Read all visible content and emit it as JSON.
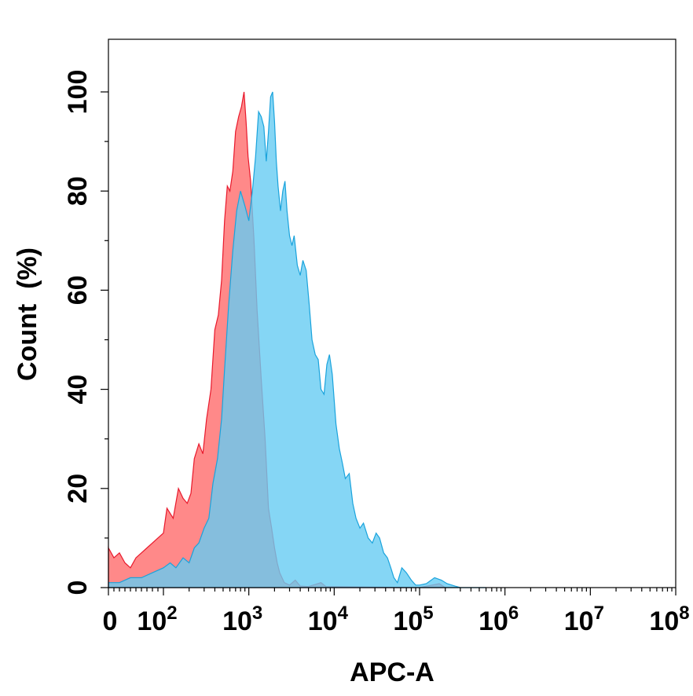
{
  "chart_data": {
    "type": "area",
    "title": "",
    "xlabel": "APC-A",
    "ylabel": "Count  (%)",
    "x_scale": "log",
    "xlim": [
      0,
      100000000
    ],
    "ylim": [
      0,
      100
    ],
    "grid": false,
    "legend": "none",
    "x_ticks": [
      {
        "base": "0",
        "exp": "",
        "value": 0
      },
      {
        "base": "10",
        "exp": "2",
        "value": 100
      },
      {
        "base": "10",
        "exp": "3",
        "value": 1000
      },
      {
        "base": "10",
        "exp": "4",
        "value": 10000
      },
      {
        "base": "10",
        "exp": "5",
        "value": 100000
      },
      {
        "base": "10",
        "exp": "6",
        "value": 1000000
      },
      {
        "base": "10",
        "exp": "7",
        "value": 10000000
      },
      {
        "base": "10",
        "exp": "8",
        "value": 100000000
      }
    ],
    "y_ticks": [
      "0",
      "20",
      "40",
      "60",
      "80",
      "100"
    ],
    "series": [
      {
        "color": "#ff6b6b",
        "stroke": "#e8192c",
        "opacity": 0.8,
        "points": [
          [
            0,
            8
          ],
          [
            10,
            6
          ],
          [
            20,
            7
          ],
          [
            30,
            5
          ],
          [
            40,
            4
          ],
          [
            50,
            6
          ],
          [
            60,
            7
          ],
          [
            70,
            8
          ],
          [
            80,
            9
          ],
          [
            100,
            11
          ],
          [
            110,
            16
          ],
          [
            130,
            14
          ],
          [
            150,
            20
          ],
          [
            170,
            18
          ],
          [
            190,
            17
          ],
          [
            210,
            19
          ],
          [
            230,
            26
          ],
          [
            260,
            29
          ],
          [
            290,
            27
          ],
          [
            320,
            34
          ],
          [
            360,
            40
          ],
          [
            400,
            52
          ],
          [
            440,
            55
          ],
          [
            480,
            62
          ],
          [
            520,
            74
          ],
          [
            560,
            81
          ],
          [
            600,
            80
          ],
          [
            650,
            84
          ],
          [
            700,
            92
          ],
          [
            760,
            95
          ],
          [
            820,
            97
          ],
          [
            880,
            100
          ],
          [
            930,
            94
          ],
          [
            980,
            87
          ],
          [
            1050,
            82
          ],
          [
            1150,
            70
          ],
          [
            1250,
            56
          ],
          [
            1400,
            42
          ],
          [
            1550,
            30
          ],
          [
            1700,
            16
          ],
          [
            1850,
            12
          ],
          [
            2000,
            8
          ],
          [
            2150,
            5
          ],
          [
            2300,
            3
          ],
          [
            2600,
            1
          ],
          [
            3000,
            0.5
          ],
          [
            3500,
            1.5
          ],
          [
            4000,
            0.3
          ],
          [
            5000,
            0.2
          ],
          [
            7000,
            1
          ],
          [
            8000,
            0.2
          ],
          [
            100000,
            0
          ],
          [
            170000,
            0.8
          ],
          [
            200000,
            0
          ]
        ]
      },
      {
        "color": "#66ccf2",
        "stroke": "#1aa3dc",
        "opacity": 0.8,
        "points": [
          [
            0,
            1
          ],
          [
            20,
            1
          ],
          [
            40,
            2
          ],
          [
            60,
            2
          ],
          [
            80,
            3
          ],
          [
            100,
            4
          ],
          [
            120,
            5
          ],
          [
            140,
            4
          ],
          [
            170,
            6
          ],
          [
            200,
            5
          ],
          [
            230,
            8
          ],
          [
            260,
            9
          ],
          [
            300,
            12
          ],
          [
            340,
            14
          ],
          [
            380,
            21
          ],
          [
            430,
            26
          ],
          [
            480,
            34
          ],
          [
            520,
            44
          ],
          [
            580,
            57
          ],
          [
            650,
            68
          ],
          [
            720,
            76
          ],
          [
            800,
            80
          ],
          [
            900,
            77
          ],
          [
            1000,
            74
          ],
          [
            1100,
            80
          ],
          [
            1200,
            87
          ],
          [
            1300,
            96
          ],
          [
            1400,
            95
          ],
          [
            1500,
            93
          ],
          [
            1600,
            86
          ],
          [
            1700,
            92
          ],
          [
            1800,
            99
          ],
          [
            1900,
            100
          ],
          [
            2000,
            94
          ],
          [
            2100,
            86
          ],
          [
            2200,
            81
          ],
          [
            2350,
            76
          ],
          [
            2500,
            80
          ],
          [
            2650,
            82
          ],
          [
            2800,
            76
          ],
          [
            3000,
            71
          ],
          [
            3200,
            69
          ],
          [
            3400,
            71
          ],
          [
            3700,
            65
          ],
          [
            4000,
            63
          ],
          [
            4300,
            66
          ],
          [
            4700,
            64
          ],
          [
            5100,
            57
          ],
          [
            5500,
            50
          ],
          [
            6000,
            47
          ],
          [
            6500,
            46
          ],
          [
            7000,
            40
          ],
          [
            7600,
            39
          ],
          [
            8200,
            45
          ],
          [
            8800,
            47
          ],
          [
            9500,
            43
          ],
          [
            10500,
            33
          ],
          [
            11500,
            28
          ],
          [
            12500,
            25
          ],
          [
            13500,
            22
          ],
          [
            15000,
            23
          ],
          [
            16500,
            17
          ],
          [
            18000,
            14
          ],
          [
            20000,
            12
          ],
          [
            22000,
            13
          ],
          [
            25000,
            10
          ],
          [
            28000,
            9
          ],
          [
            31000,
            11
          ],
          [
            34000,
            10
          ],
          [
            38000,
            7
          ],
          [
            42000,
            6
          ],
          [
            46000,
            4
          ],
          [
            50000,
            2
          ],
          [
            55000,
            1
          ],
          [
            62000,
            4
          ],
          [
            70000,
            3
          ],
          [
            80000,
            1.5
          ],
          [
            90000,
            0.5
          ],
          [
            100000,
            0.5
          ],
          [
            120000,
            0.8
          ],
          [
            150000,
            2
          ],
          [
            180000,
            1.5
          ],
          [
            210000,
            0.8
          ],
          [
            260000,
            0.3
          ],
          [
            300000,
            0
          ],
          [
            600000,
            0
          ]
        ]
      }
    ]
  }
}
